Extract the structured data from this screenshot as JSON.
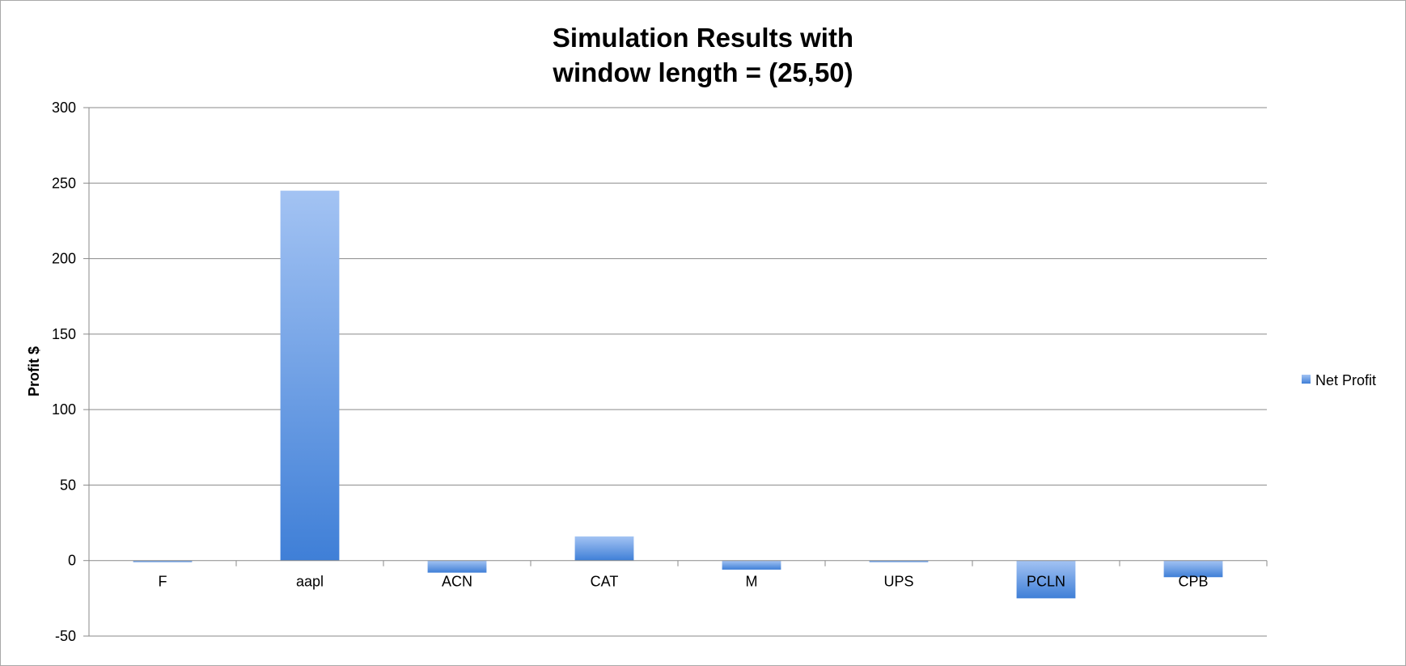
{
  "chart_data": {
    "type": "bar",
    "title_lines": [
      "Simulation Results with",
      "window length = (25,50)"
    ],
    "xlabel": "",
    "ylabel": "Profit $",
    "categories": [
      "F",
      "aapl",
      "ACN",
      "CAT",
      "M",
      "UPS",
      "PCLN",
      "CPB"
    ],
    "series": [
      {
        "name": "Net Profit",
        "values": [
          -1,
          245,
          -8,
          16,
          -6,
          -1,
          -25,
          -11
        ]
      }
    ],
    "ylim": [
      -50,
      300
    ],
    "yticks": [
      -50,
      0,
      50,
      100,
      150,
      200,
      250,
      300
    ],
    "grid": true,
    "legend_position": "right",
    "colors": {
      "bar_top": "#a3c3f3",
      "bar_bottom": "#3f7fd7",
      "grid": "#8a8a8a",
      "axis": "#8a8a8a"
    }
  }
}
